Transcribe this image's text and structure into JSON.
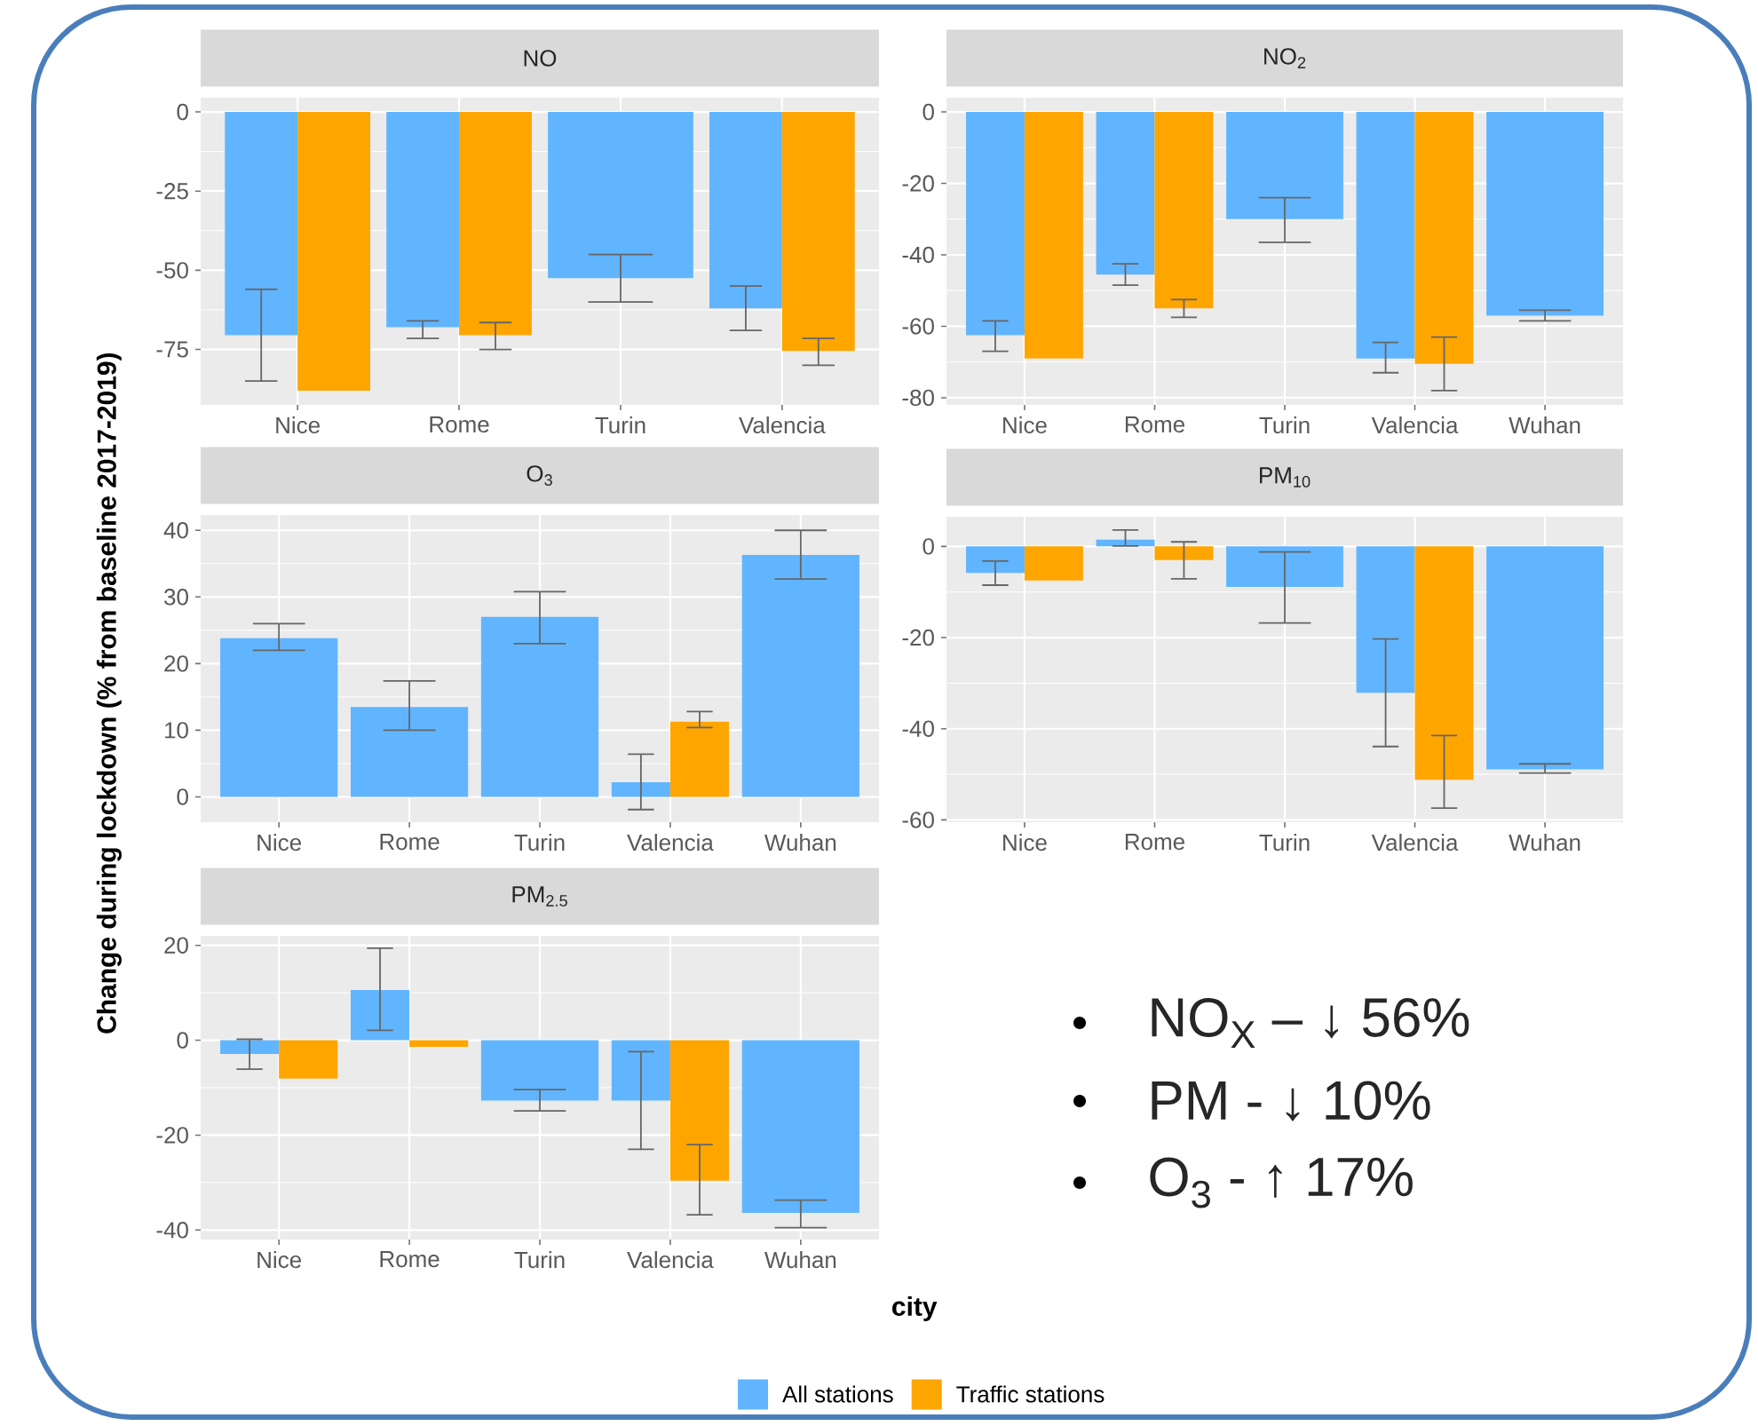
{
  "chart_data": [
    {
      "type": "bar",
      "title": "NO",
      "categories": [
        "Nice",
        "Rome",
        "Turin",
        "Valencia"
      ],
      "series": [
        {
          "color": "#61b5ff",
          "values": [
            -70.5,
            -68,
            -52.5,
            -62
          ],
          "errors": [
            [
              -85,
              -56
            ],
            [
              -71.5,
              -66
            ],
            [
              -60,
              -45
            ],
            [
              -69,
              -55
            ]
          ]
        },
        {
          "color": "#ffa500",
          "values": [
            -88,
            -70.5,
            null,
            -75.5
          ],
          "errors": [
            null,
            [
              -75,
              -66.5
            ],
            null,
            [
              -80,
              -71.5
            ]
          ]
        }
      ],
      "ylim": [
        -92.5,
        4.5
      ],
      "yticks": [
        -75,
        -50,
        -25,
        0
      ],
      "grid": true
    },
    {
      "type": "bar",
      "title": "NO$_{2}$",
      "categories": [
        "Nice",
        "Rome",
        "Turin",
        "Valencia",
        "Wuhan"
      ],
      "series": [
        {
          "color": "#61b5ff",
          "values": [
            -62.5,
            -45.5,
            -30,
            -69,
            -57
          ],
          "errors": [
            [
              -67,
              -58.5
            ],
            [
              -48.5,
              -42.5
            ],
            [
              -36.5,
              -24
            ],
            [
              -73,
              -64.5
            ],
            [
              -58.5,
              -55.5
            ]
          ]
        },
        {
          "color": "#ffa500",
          "values": [
            -69,
            -55,
            null,
            -70.5,
            null
          ],
          "errors": [
            null,
            [
              -57.5,
              -52.5
            ],
            null,
            [
              -78,
              -63
            ],
            null
          ]
        }
      ],
      "ylim": [
        -82,
        4
      ],
      "yticks": [
        -80,
        -60,
        -40,
        -20,
        0
      ],
      "grid": true
    },
    {
      "type": "bar",
      "title": "O$_{3}$",
      "ylabel": "Change during lockdown (% from baseline 2017-2019)",
      "categories": [
        "Nice",
        "Rome",
        "Turin",
        "Valencia",
        "Wuhan"
      ],
      "series": [
        {
          "color": "#61b5ff",
          "values": [
            23.8,
            13.5,
            27,
            2.2,
            36.3
          ],
          "errors": [
            [
              22,
              26
            ],
            [
              10,
              17.4
            ],
            [
              23,
              30.8
            ],
            [
              -1.9,
              6.4
            ],
            [
              32.7,
              40
            ]
          ]
        },
        {
          "color": "#ffa500",
          "values": [
            null,
            null,
            null,
            11.3,
            null
          ],
          "errors": [
            null,
            null,
            null,
            [
              10.4,
              12.8
            ],
            null
          ]
        }
      ],
      "ylim": [
        -3.8,
        42.3
      ],
      "yticks": [
        0,
        10,
        20,
        30,
        40
      ],
      "grid": true
    },
    {
      "type": "bar",
      "title": "PM$_{10}$",
      "categories": [
        "Nice",
        "Rome",
        "Turin",
        "Valencia",
        "Wuhan"
      ],
      "series": [
        {
          "color": "#61b5ff",
          "values": [
            -5.8,
            1.5,
            -8.9,
            -32.1,
            -48.9
          ],
          "errors": [
            [
              -8.5,
              -3.2
            ],
            [
              0.1,
              3.6
            ],
            [
              -16.8,
              -1.2
            ],
            [
              -43.9,
              -20.3
            ],
            [
              -49.7,
              -47.7
            ]
          ]
        },
        {
          "color": "#ffa500",
          "values": [
            -7.5,
            -3,
            null,
            -51.2,
            null
          ],
          "errors": [
            null,
            [
              -7.1,
              1
            ],
            null,
            [
              -57.4,
              -41.5
            ],
            null
          ]
        }
      ],
      "ylim": [
        -60.5,
        6.5
      ],
      "yticks": [
        -60,
        -40,
        -20,
        0
      ],
      "grid": true
    },
    {
      "type": "bar",
      "title": "PM$_{2.5}$",
      "xlabel": "city",
      "legend": "bottom",
      "categories": [
        "Nice",
        "Rome",
        "Turin",
        "Valencia",
        "Wuhan"
      ],
      "series": [
        {
          "name": "All stations",
          "color": "#61b5ff",
          "values": [
            -2.9,
            10.6,
            -12.7,
            -12.7,
            -36.4
          ],
          "errors": [
            [
              -6.1,
              0.2
            ],
            [
              2.1,
              19.4
            ],
            [
              -14.9,
              -10.4
            ],
            [
              -23,
              -2.4
            ],
            [
              -39.5,
              -33.7
            ]
          ]
        },
        {
          "name": "Traffic stations",
          "color": "#ffa500",
          "values": [
            -8.1,
            -1.4,
            null,
            -29.6,
            null
          ],
          "errors": [
            null,
            null,
            null,
            [
              -36.8,
              -22
            ],
            null
          ]
        }
      ],
      "ylim": [
        -42,
        22
      ],
      "yticks": [
        -40,
        -20,
        0,
        20
      ],
      "grid": true
    },
    {
      "type": "other",
      "annotations": [
        "NO$_{X}$ – ↓ 56%",
        "PM  - ↓ 10%",
        "O$_{3}$ - ↑ 17%"
      ]
    }
  ]
}
